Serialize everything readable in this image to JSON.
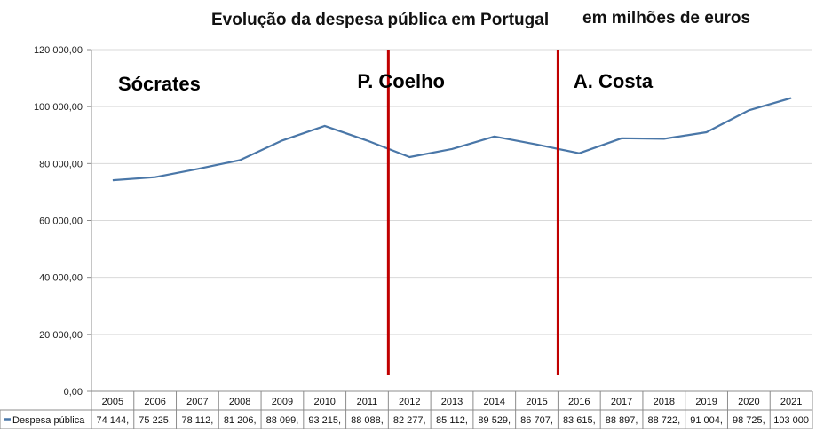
{
  "chart_data": {
    "type": "line",
    "title": "Evolução da despesa pública em Portugal",
    "subtitle": "em milhões de euros",
    "xlabel": "",
    "ylabel": "",
    "ylim": [
      0,
      120000
    ],
    "yticks": [
      "0,00",
      "20 000,00",
      "40 000,00",
      "60 000,00",
      "80 000,00",
      "100 000,00",
      "120 000,00"
    ],
    "grid": true,
    "categories": [
      "2005",
      "2006",
      "2007",
      "2008",
      "2009",
      "2010",
      "2011",
      "2012",
      "2013",
      "2014",
      "2015",
      "2016",
      "2017",
      "2018",
      "2019",
      "2020",
      "2021"
    ],
    "series": [
      {
        "name": "Despesa pública",
        "color": "#4a77a8",
        "values": [
          74144,
          75225,
          78112,
          81206,
          88099,
          93215,
          88088,
          82277,
          85112,
          89529,
          86707,
          83615,
          88897,
          88722,
          91004,
          98725,
          103000
        ],
        "labels": [
          "74 144,",
          "75 225,",
          "78 112,",
          "81 206,",
          "88 099,",
          "93 215,",
          "88 088,",
          "82 277,",
          "85 112,",
          "89 529,",
          "86 707,",
          "83 615,",
          "88 897,",
          "88 722,",
          "91 004,",
          "98 725,",
          "103 000"
        ]
      }
    ],
    "legend": "data-table-left",
    "annotations": [
      {
        "text": "Sócrates",
        "period": "2005-2011"
      },
      {
        "text": "P. Coelho",
        "period": "2011-2015"
      },
      {
        "text": "A. Costa",
        "period": "2015-2021"
      }
    ],
    "dividers": {
      "color": "#c00000",
      "after_years": [
        "2011",
        "2015"
      ]
    }
  }
}
